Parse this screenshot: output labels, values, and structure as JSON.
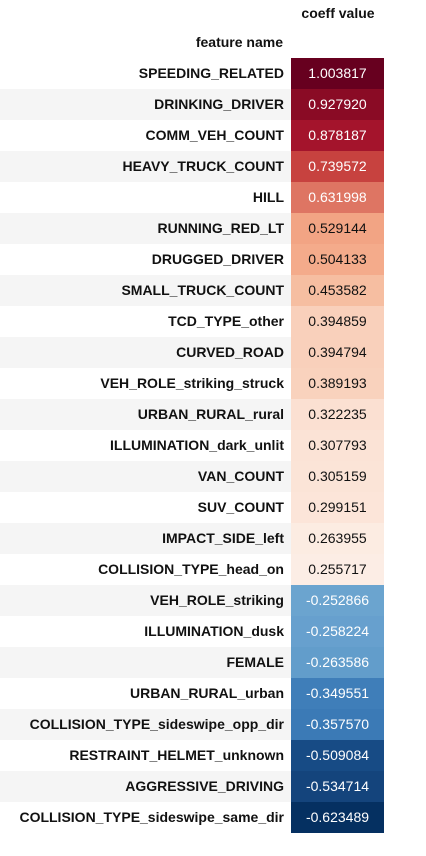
{
  "table": {
    "column_header": "coeff value",
    "index_header": "feature name",
    "rows": [
      {
        "feature": "SPEEDING_RELATED",
        "value": "1.003817",
        "bg": "#67001f",
        "fg": "#ffffff"
      },
      {
        "feature": "DRINKING_DRIVER",
        "value": "0.927920",
        "bg": "#8a0b25",
        "fg": "#ffffff"
      },
      {
        "feature": "COMM_VEH_COUNT",
        "value": "0.878187",
        "bg": "#a4142c",
        "fg": "#ffffff"
      },
      {
        "feature": "HEAVY_TRUCK_COUNT",
        "value": "0.739572",
        "bg": "#c7423f",
        "fg": "#ffffff"
      },
      {
        "feature": "HILL",
        "value": "0.631998",
        "bg": "#de7563",
        "fg": "#ffffff"
      },
      {
        "feature": "RUNNING_RED_LT",
        "value": "0.529144",
        "bg": "#f2a484",
        "fg": "#111111"
      },
      {
        "feature": "DRUGGED_DRIVER",
        "value": "0.504133",
        "bg": "#f4ab8b",
        "fg": "#111111"
      },
      {
        "feature": "SMALL_TRUCK_COUNT",
        "value": "0.453582",
        "bg": "#f6bea1",
        "fg": "#111111"
      },
      {
        "feature": "TCD_TYPE_other",
        "value": "0.394859",
        "bg": "#f9d0bb",
        "fg": "#111111"
      },
      {
        "feature": "CURVED_ROAD",
        "value": "0.394794",
        "bg": "#f9d0bb",
        "fg": "#111111"
      },
      {
        "feature": "VEH_ROLE_striking_struck",
        "value": "0.389193",
        "bg": "#f9d2bd",
        "fg": "#111111"
      },
      {
        "feature": "URBAN_RURAL_rural",
        "value": "0.322235",
        "bg": "#fbe0d2",
        "fg": "#111111"
      },
      {
        "feature": "ILLUMINATION_dark_unlit",
        "value": "0.307793",
        "bg": "#fbe3d6",
        "fg": "#111111"
      },
      {
        "feature": "VAN_COUNT",
        "value": "0.305159",
        "bg": "#fbe4d7",
        "fg": "#111111"
      },
      {
        "feature": "SUV_COUNT",
        "value": "0.299151",
        "bg": "#fce5d9",
        "fg": "#111111"
      },
      {
        "feature": "IMPACT_SIDE_left",
        "value": "0.263955",
        "bg": "#fcece2",
        "fg": "#111111"
      },
      {
        "feature": "COLLISION_TYPE_head_on",
        "value": "0.255717",
        "bg": "#fcede5",
        "fg": "#111111"
      },
      {
        "feature": "VEH_ROLE_striking",
        "value": "-0.252866",
        "bg": "#6ba4cf",
        "fg": "#ffffff"
      },
      {
        "feature": "ILLUMINATION_dusk",
        "value": "-0.258224",
        "bg": "#67a0ce",
        "fg": "#ffffff"
      },
      {
        "feature": "FEMALE",
        "value": "-0.263586",
        "bg": "#629dcb",
        "fg": "#ffffff"
      },
      {
        "feature": "URBAN_RURAL_urban",
        "value": "-0.349551",
        "bg": "#3f7eb9",
        "fg": "#ffffff"
      },
      {
        "feature": "COLLISION_TYPE_sideswipe_opp_dir",
        "value": "-0.357570",
        "bg": "#3b7ab6",
        "fg": "#ffffff"
      },
      {
        "feature": "RESTRAINT_HELMET_unknown",
        "value": "-0.509084",
        "bg": "#174b85",
        "fg": "#ffffff"
      },
      {
        "feature": "AGGRESSIVE_DRIVING",
        "value": "-0.534714",
        "bg": "#14447c",
        "fg": "#ffffff"
      },
      {
        "feature": "COLLISION_TYPE_sideswipe_same_dir",
        "value": "-0.623489",
        "bg": "#053061",
        "fg": "#ffffff"
      }
    ]
  }
}
